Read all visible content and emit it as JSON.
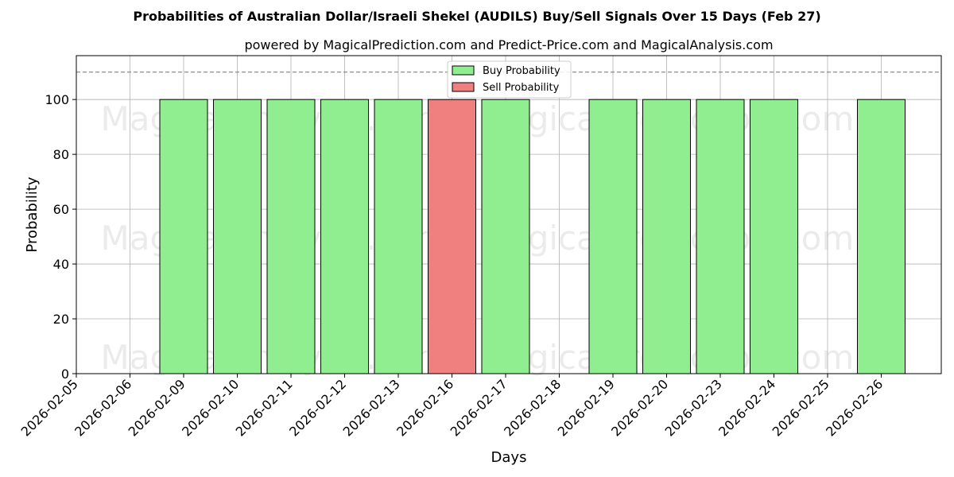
{
  "chart_data": {
    "type": "bar",
    "title": "Probabilities of Australian Dollar/Israeli Shekel (AUDILS) Buy/Sell Signals Over 15 Days (Feb 27)",
    "subtitle": "powered by MagicalPrediction.com and Predict-Price.com and MagicalAnalysis.com",
    "xlabel": "Days",
    "ylabel": "Probability",
    "ylim": [
      0,
      116
    ],
    "yticks": [
      0,
      20,
      40,
      60,
      80,
      100
    ],
    "threshold": 110,
    "grid": true,
    "legend_position": "top-center",
    "categories": [
      "2026-02-05",
      "2026-02-06",
      "2026-02-09",
      "2026-02-10",
      "2026-02-11",
      "2026-02-12",
      "2026-02-13",
      "2026-02-16",
      "2026-02-17",
      "2026-02-18",
      "2026-02-19",
      "2026-02-20",
      "2026-02-23",
      "2026-02-24",
      "2026-02-25",
      "2026-02-26"
    ],
    "series": [
      {
        "name": "Buy Probability",
        "color": "#90ee90",
        "values": [
          0,
          0,
          100,
          100,
          100,
          100,
          100,
          0,
          100,
          0,
          100,
          100,
          100,
          100,
          0,
          100
        ]
      },
      {
        "name": "Sell Probability",
        "color": "#f08080",
        "values": [
          0,
          0,
          0,
          0,
          0,
          0,
          0,
          100,
          0,
          0,
          0,
          0,
          0,
          0,
          0,
          0
        ]
      }
    ],
    "watermarks": [
      "MagicalAnalysis.com",
      "MagicalPrediction.com",
      "MagicalAnalysis.com",
      "MagicalPrediction.com",
      "MagicalAnalysis.com",
      "MagicalPrediction.com"
    ]
  }
}
